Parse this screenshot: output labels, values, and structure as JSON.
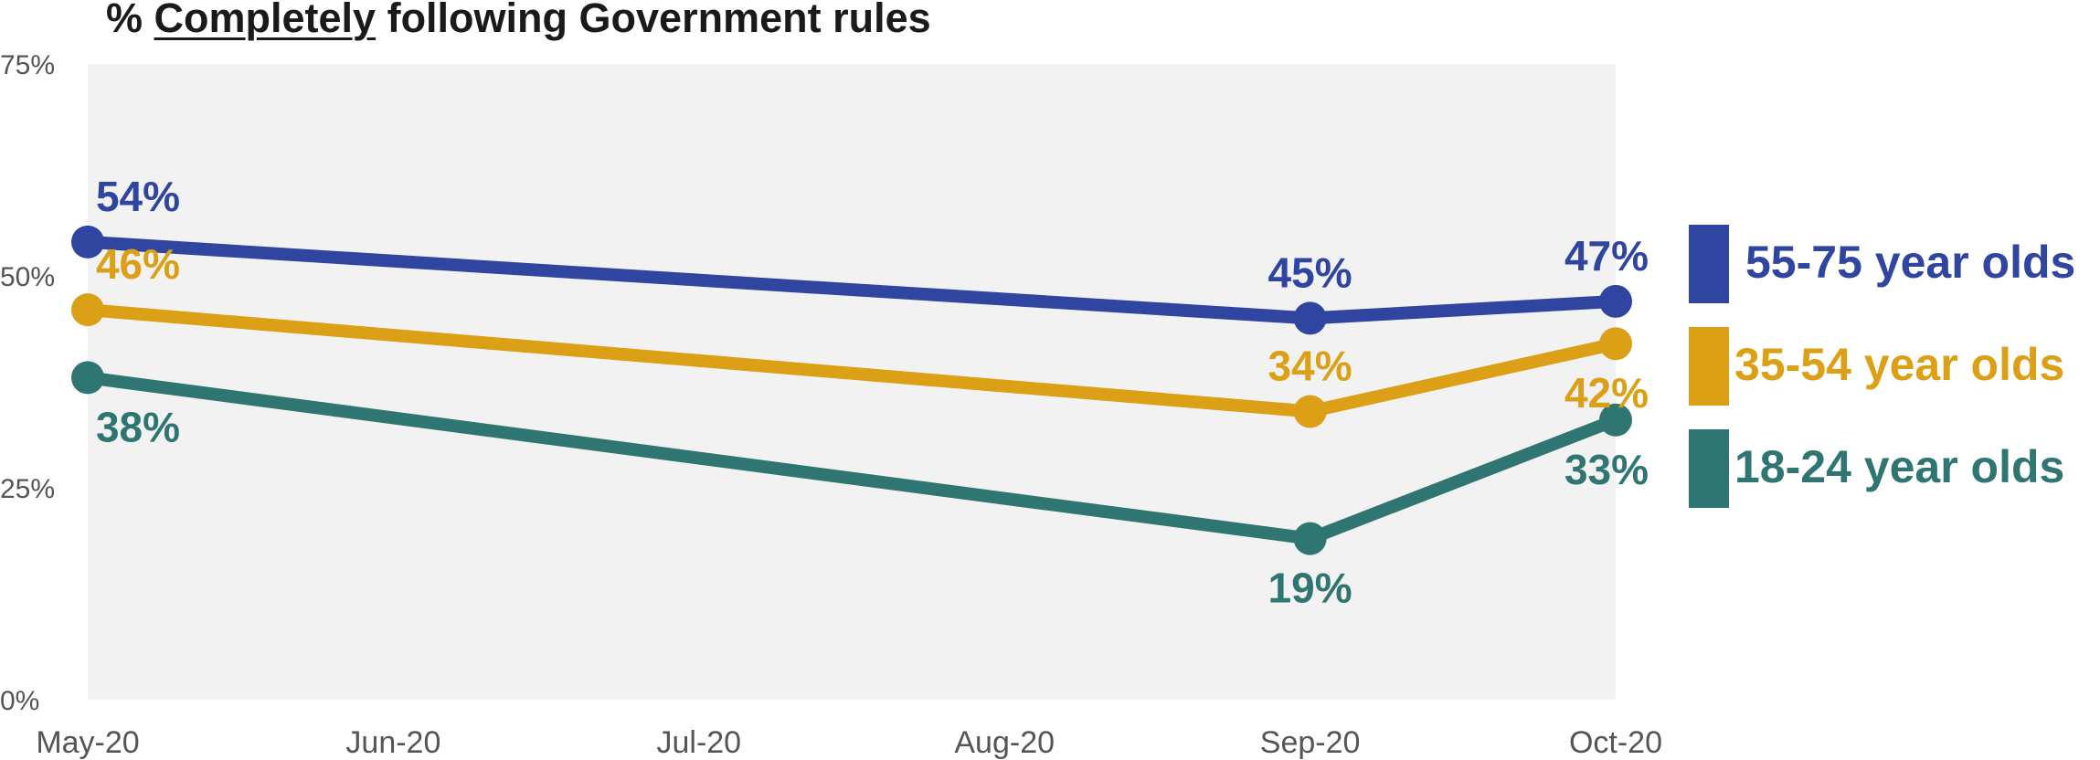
{
  "chart_data": {
    "type": "line",
    "title_parts": {
      "prefix": "% ",
      "emph": "Completely",
      "suffix": " following Government rules"
    },
    "categories": [
      "May-20",
      "Jun-20",
      "Jul-20",
      "Aug-20",
      "Sep-20",
      "Oct-20"
    ],
    "yticks": [
      "0%",
      "25%",
      "50%",
      "75%"
    ],
    "ylim": [
      0,
      75
    ],
    "grid": false,
    "legend_position": "right",
    "series": [
      {
        "name": "55-75 year olds",
        "color": "#2f45a0",
        "points": [
          {
            "x": "May-20",
            "y": 54
          },
          {
            "x": "Sep-20",
            "y": 45
          },
          {
            "x": "Oct-20",
            "y": 47
          }
        ],
        "labels": [
          "54%",
          "45%",
          "47%"
        ],
        "label_pos": [
          "above",
          "above",
          "above"
        ]
      },
      {
        "name": "35-54 year olds",
        "color": "#dba015",
        "points": [
          {
            "x": "May-20",
            "y": 46
          },
          {
            "x": "Sep-20",
            "y": 34
          },
          {
            "x": "Oct-20",
            "y": 42
          }
        ],
        "labels": [
          "46%",
          "34%",
          "42%"
        ],
        "label_pos": [
          "above",
          "above",
          "below"
        ]
      },
      {
        "name": "18-24 year olds",
        "color": "#2f7571",
        "points": [
          {
            "x": "May-20",
            "y": 38
          },
          {
            "x": "Sep-20",
            "y": 19
          },
          {
            "x": "Oct-20",
            "y": 33
          }
        ],
        "labels": [
          "38%",
          "19%",
          "33%"
        ],
        "label_pos": [
          "below",
          "below",
          "below"
        ]
      }
    ]
  }
}
